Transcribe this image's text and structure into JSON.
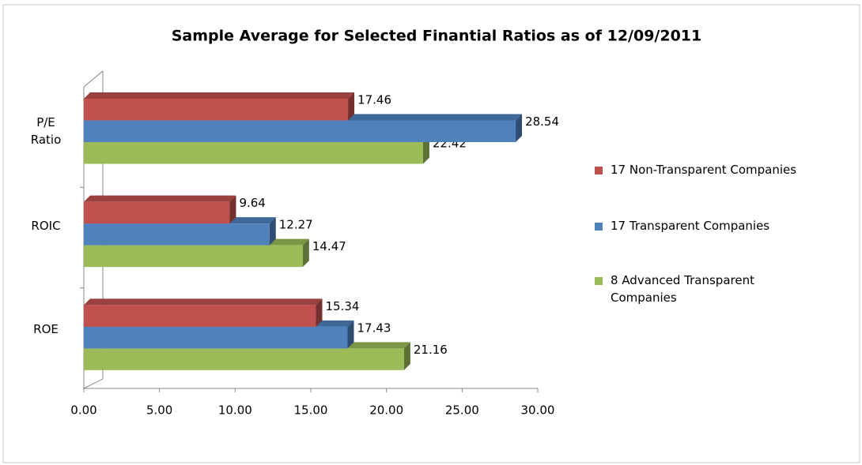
{
  "chart_data": {
    "type": "bar3d-horizontal",
    "title": "Sample Average for Selected Finantial Ratios as of  12/09/2011",
    "categories": [
      "P/E Ratio",
      "ROIC",
      "ROE"
    ],
    "series": [
      {
        "name": "17 Non-Transparent Companies",
        "color": "#c0504d",
        "values": [
          17.46,
          9.64,
          15.34
        ]
      },
      {
        "name": "17 Transparent Companies",
        "color": "#4f81bd",
        "values": [
          28.54,
          12.27,
          17.43
        ]
      },
      {
        "name": "8 Advanced Transparent Companies",
        "color": "#9bbb59",
        "values": [
          22.42,
          14.47,
          21.16
        ]
      }
    ],
    "xlim": [
      0,
      30
    ],
    "xticks": [
      {
        "value": 0,
        "label": "0.00"
      },
      {
        "value": 5,
        "label": "5.00"
      },
      {
        "value": 10,
        "label": "10.00"
      },
      {
        "value": 15,
        "label": "15.00"
      },
      {
        "value": 20,
        "label": "20.00"
      },
      {
        "value": 25,
        "label": "25.00"
      },
      {
        "value": 30,
        "label": "30.00"
      }
    ],
    "legend": "right"
  }
}
